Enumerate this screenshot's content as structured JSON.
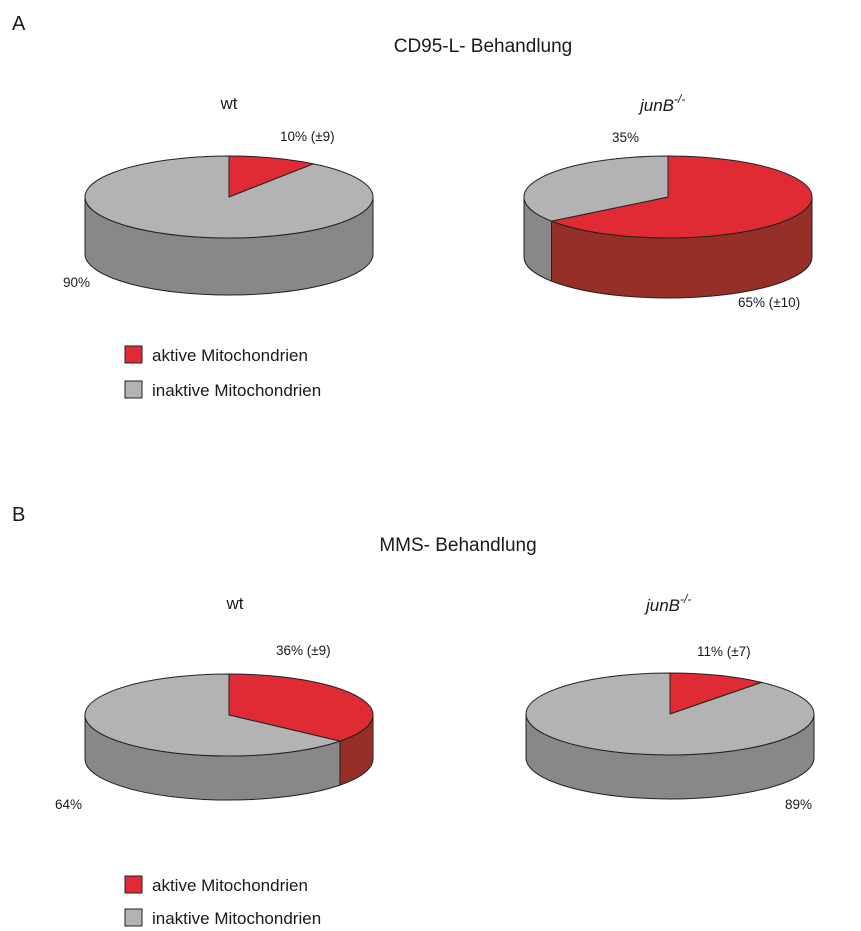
{
  "colors": {
    "active_top": "#e02b35",
    "active_side": "#952f28",
    "inactive_top": "#b3b3b3",
    "inactive_side": "#888888",
    "outline": "#222222"
  },
  "chart_data": [
    {
      "type": "pie",
      "panel_letter": "A",
      "title": "CD95-L- Behandlung",
      "pies": [
        {
          "title": "wt",
          "title_sup": "",
          "slices": [
            {
              "category": "aktive Mitochondrien",
              "value": 10,
              "label": "10% (±9)"
            },
            {
              "category": "inaktive Mitochondrien",
              "value": 90,
              "label": "90%"
            }
          ]
        },
        {
          "title": "junB",
          "title_sup": "-/-",
          "slices": [
            {
              "category": "aktive Mitochondrien",
              "value": 65,
              "label": "65% (±10)"
            },
            {
              "category": "inaktive Mitochondrien",
              "value": 35,
              "label": "35%"
            }
          ]
        }
      ],
      "legend": [
        "aktive Mitochondrien",
        "inaktive Mitochondrien"
      ]
    },
    {
      "type": "pie",
      "panel_letter": "B",
      "title": "MMS- Behandlung",
      "pies": [
        {
          "title": "wt",
          "title_sup": "",
          "slices": [
            {
              "category": "aktive Mitochondrien",
              "value": 36,
              "label": "36% (±9)"
            },
            {
              "category": "inaktive Mitochondrien",
              "value": 64,
              "label": "64%"
            }
          ]
        },
        {
          "title": "junB",
          "title_sup": "-/-",
          "slices": [
            {
              "category": "aktive Mitochondrien",
              "value": 11,
              "label": "11% (±7)"
            },
            {
              "category": "inaktive Mitochondrien",
              "value": 89,
              "label": "89%"
            }
          ]
        }
      ],
      "legend": [
        "aktive Mitochondrien",
        "inaktive Mitochondrien"
      ]
    }
  ]
}
